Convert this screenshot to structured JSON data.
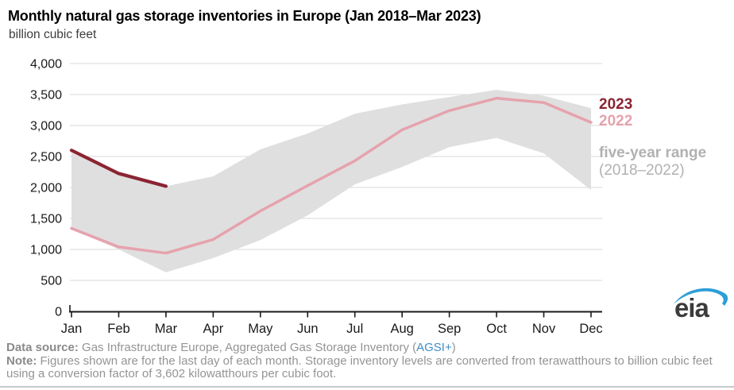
{
  "header": {
    "title": "Monthly natural gas storage inventories in Europe (Jan 2018–Mar 2023)",
    "unit_label": "billion cubic feet"
  },
  "chart_data": {
    "type": "line",
    "title": "Monthly natural gas storage inventories in Europe (Jan 2018–Mar 2023)",
    "ylabel": "billion cubic feet",
    "xlabel": "",
    "ylim": [
      0,
      4000
    ],
    "grid": "horizontal",
    "legend_position": "right",
    "categories": [
      "Jan",
      "Feb",
      "Mar",
      "Apr",
      "May",
      "Jun",
      "Jul",
      "Aug",
      "Sep",
      "Oct",
      "Nov",
      "Dec"
    ],
    "ytick_values": [
      0,
      500,
      1000,
      1500,
      2000,
      2500,
      3000,
      3500,
      4000
    ],
    "ytick_labels": [
      "0",
      "500",
      "1,000",
      "1,500",
      "2,000",
      "2,500",
      "3,000",
      "3,500",
      "4,000"
    ],
    "series": [
      {
        "name": "2023",
        "color": "#8b2433",
        "values": [
          2600,
          2225,
          2020
        ]
      },
      {
        "name": "2022",
        "color": "#e5a3ad",
        "values": [
          1340,
          1040,
          940,
          1160,
          1620,
          2030,
          2430,
          2930,
          3240,
          3440,
          3370,
          3050
        ]
      }
    ],
    "band": {
      "name": "five-year range (2018–2022)",
      "color": "#e0dfdf",
      "label_color": "#b2b1b1",
      "top": [
        2560,
        2210,
        2020,
        2180,
        2615,
        2870,
        3190,
        3340,
        3460,
        3575,
        3480,
        3280
      ],
      "bottom": [
        1330,
        1000,
        630,
        860,
        1150,
        1550,
        2050,
        2330,
        2650,
        2800,
        2550,
        1960
      ]
    },
    "colors": {
      "gridline": "#d9d9d9",
      "axis": "#1a1a1a",
      "tick_text": "#1a1a1a"
    }
  },
  "legend": {
    "y2023": "2023",
    "y2022": "2022",
    "range_line1": "five-year range",
    "range_line2": "(2018–2022)"
  },
  "footer": {
    "data_source_label": "Data source:",
    "data_source_text": " Gas Infrastructure Europe, Aggregated Gas Storage Inventory (",
    "data_source_link": "AGSI+",
    "data_source_suffix": ")",
    "note_label": "Note:",
    "note_text": " Figures shown are for the last day of each month. Storage inventory levels are converted from terawatthours to billion cubic feet using a conversion factor of 3,602 kilowatthours per cubic foot."
  },
  "logo": {
    "text": "eia",
    "swoosh_color": "#2d9fd8",
    "text_color": "#3b3b3b"
  }
}
